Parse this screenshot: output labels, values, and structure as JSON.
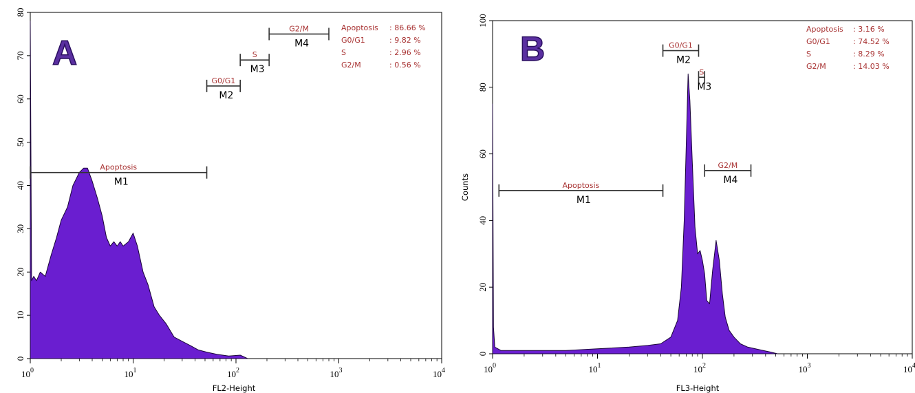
{
  "colors": {
    "fill": "#6a1ed0",
    "edge": "#1a0538",
    "gate_text": "#a83232",
    "panel_letter": "#5a2fa0"
  },
  "chart_data": [
    {
      "type": "area",
      "panel_label": "A",
      "x_scale": "log",
      "xlim": [
        1,
        10000
      ],
      "ylim": [
        0,
        80
      ],
      "x_tick_labels": [
        "10",
        "10",
        "10",
        "10",
        "10"
      ],
      "x_tick_exponents": [
        "0",
        "1",
        "2",
        "3",
        "4"
      ],
      "x_ticks": [
        1,
        10,
        100,
        1000,
        10000
      ],
      "y_ticks": [
        0,
        10,
        20,
        30,
        40,
        50,
        60,
        70,
        80
      ],
      "y_tick_labels": [
        "0",
        "10",
        "20",
        "30",
        "40",
        "50",
        "60",
        "70",
        "80"
      ],
      "xlabel": "FL2-Height",
      "ylabel": "",
      "x": [
        1.0,
        1.03,
        1.08,
        1.15,
        1.25,
        1.4,
        1.6,
        1.8,
        2.0,
        2.3,
        2.6,
        3.0,
        3.3,
        3.6,
        4.0,
        4.5,
        5.0,
        5.5,
        6.0,
        6.5,
        7.0,
        7.5,
        8.0,
        9.0,
        10.0,
        11.0,
        12.5,
        14.0,
        16.0,
        18.0,
        21.0,
        25.0,
        30.0,
        36.0,
        43.0,
        52.0,
        65.0,
        85.0,
        110.0,
        130.0
      ],
      "y": [
        78,
        18,
        19,
        18,
        20,
        19,
        24,
        28,
        32,
        35,
        40,
        43,
        44,
        44,
        41,
        37,
        33,
        28,
        26,
        27,
        26,
        27,
        26,
        27,
        29,
        26,
        20,
        17,
        12,
        10,
        8,
        5,
        4,
        3,
        2,
        1.5,
        1,
        0.6,
        0.8,
        0
      ],
      "gates": [
        {
          "name": "Apoptosis",
          "marker": "M1",
          "range": [
            1,
            52
          ],
          "y": 43
        },
        {
          "name": "G0/G1",
          "marker": "M2",
          "range": [
            52,
            110
          ],
          "y": 63
        },
        {
          "name": "S",
          "marker": "M3",
          "range": [
            110,
            210
          ],
          "y": 69
        },
        {
          "name": "G2/M",
          "marker": "M4",
          "range": [
            210,
            800
          ],
          "y": 75
        }
      ],
      "stats": [
        {
          "label": "Apoptosis",
          "value": ": 86.66 %"
        },
        {
          "label": "G0/G1",
          "value": ": 9.82 %"
        },
        {
          "label": "S",
          "value": ": 2.96 %"
        },
        {
          "label": "G2/M",
          "value": ": 0.56 %"
        }
      ]
    },
    {
      "type": "area",
      "panel_label": "B",
      "x_scale": "log",
      "xlim": [
        1,
        10000
      ],
      "ylim": [
        0,
        100
      ],
      "x_tick_labels": [
        "10",
        "10",
        "10",
        "10",
        "10"
      ],
      "x_tick_exponents": [
        "0",
        "1",
        "2",
        "3",
        "4"
      ],
      "x_ticks": [
        1,
        10,
        100,
        1000,
        10000
      ],
      "y_ticks": [
        0,
        20,
        40,
        60,
        80,
        100
      ],
      "y_tick_labels": [
        "0",
        "20",
        "40",
        "60",
        "80",
        "100"
      ],
      "xlabel": "FL3-Height",
      "ylabel": "Counts",
      "x": [
        1.0,
        1.02,
        1.05,
        1.2,
        2.0,
        5.0,
        10.0,
        20.0,
        30.0,
        40.0,
        50.0,
        58.0,
        63.0,
        67.0,
        70.0,
        73.0,
        76.0,
        80.0,
        85.0,
        90.0,
        95.0,
        100.0,
        105.0,
        110.0,
        117.0,
        125.0,
        135.0,
        145.0,
        155.0,
        165.0,
        180.0,
        200.0,
        230.0,
        270.0,
        320.0,
        380.0,
        450.0,
        520.0
      ],
      "y": [
        75,
        8,
        2,
        1,
        1,
        1,
        1.5,
        2,
        2.5,
        3,
        5,
        10,
        20,
        40,
        62,
        84,
        76,
        58,
        38,
        30,
        31,
        28,
        24,
        16,
        15,
        25,
        34,
        28,
        18,
        11,
        7,
        5,
        3,
        2,
        1.5,
        1,
        0.5,
        0
      ],
      "gates": [
        {
          "name": "Apoptosis",
          "marker": "M1",
          "range": [
            1.15,
            42
          ],
          "y": 49
        },
        {
          "name": "G0/G1",
          "marker": "M2",
          "range": [
            42,
            92
          ],
          "y": 91
        },
        {
          "name": "S",
          "marker": "M3",
          "range": [
            92,
            105
          ],
          "y": 83
        },
        {
          "name": "G2/M",
          "marker": "M4",
          "range": [
            105,
            290
          ],
          "y": 55
        }
      ],
      "stats": [
        {
          "label": "Apoptosis",
          "value": ": 3.16 %"
        },
        {
          "label": "G0/G1",
          "value": ": 74.52 %"
        },
        {
          "label": "S",
          "value": ": 8.29 %"
        },
        {
          "label": "G2/M",
          "value": ": 14.03 %"
        }
      ]
    }
  ]
}
